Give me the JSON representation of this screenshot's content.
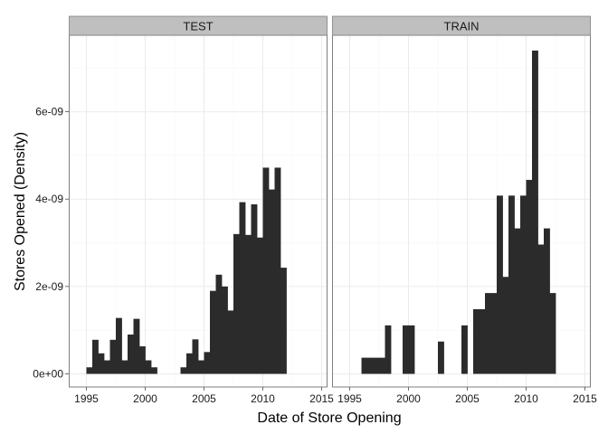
{
  "chart_data": {
    "type": "bar",
    "xlabel": "Date of Store Opening",
    "ylabel": "Stores Opened (Density)",
    "xlim": [
      1993.5,
      2015.5
    ],
    "ylim": [
      -3e-10,
      7.75e-09
    ],
    "x_ticks": [
      1995,
      2000,
      2005,
      2010,
      2015
    ],
    "x_tick_labels": [
      "1995",
      "2000",
      "2005",
      "2010",
      "2015"
    ],
    "y_ticks": [
      0,
      2e-09,
      4e-09,
      6e-09
    ],
    "y_tick_labels": [
      "0e+00",
      "2e-09",
      "4e-09",
      "6e-09"
    ],
    "grid": true,
    "bin_width": 0.5,
    "facets": [
      {
        "label": "TEST",
        "bins": [
          {
            "x": 1995,
            "value": 1.5e-10
          },
          {
            "x": 1995.5,
            "value": 7.8e-10
          },
          {
            "x": 1996,
            "value": 4.7e-10
          },
          {
            "x": 1996.5,
            "value": 3.1e-10
          },
          {
            "x": 1997,
            "value": 7.8e-10
          },
          {
            "x": 1997.5,
            "value": 1.28e-09
          },
          {
            "x": 1998,
            "value": 3.1e-10
          },
          {
            "x": 1998.5,
            "value": 9e-10
          },
          {
            "x": 1999,
            "value": 1.26e-09
          },
          {
            "x": 1999.5,
            "value": 6.3e-10
          },
          {
            "x": 2000,
            "value": 3.1e-10
          },
          {
            "x": 2000.5,
            "value": 1.5e-10
          },
          {
            "x": 2003,
            "value": 1.5e-10
          },
          {
            "x": 2003.5,
            "value": 4.7e-10
          },
          {
            "x": 2004,
            "value": 7.9e-10
          },
          {
            "x": 2004.5,
            "value": 3.1e-10
          },
          {
            "x": 2005,
            "value": 5e-10
          },
          {
            "x": 2005.5,
            "value": 1.9e-09
          },
          {
            "x": 2006,
            "value": 2.27e-09
          },
          {
            "x": 2006.5,
            "value": 2e-09
          },
          {
            "x": 2007,
            "value": 1.45e-09
          },
          {
            "x": 2007.5,
            "value": 3.2e-09
          },
          {
            "x": 2008,
            "value": 3.93e-09
          },
          {
            "x": 2008.5,
            "value": 3.18e-09
          },
          {
            "x": 2009,
            "value": 3.88e-09
          },
          {
            "x": 2009.5,
            "value": 3.12e-09
          },
          {
            "x": 2010,
            "value": 4.72e-09
          },
          {
            "x": 2010.5,
            "value": 4.22e-09
          },
          {
            "x": 2011,
            "value": 4.72e-09
          },
          {
            "x": 2011.5,
            "value": 2.43e-09
          }
        ]
      },
      {
        "label": "TRAIN",
        "bins": [
          {
            "x": 1996,
            "value": 3.7e-10
          },
          {
            "x": 1996.5,
            "value": 3.7e-10
          },
          {
            "x": 1997,
            "value": 3.7e-10
          },
          {
            "x": 1997.5,
            "value": 3.7e-10
          },
          {
            "x": 1998,
            "value": 1.11e-09
          },
          {
            "x": 1999.5,
            "value": 1.11e-09
          },
          {
            "x": 2000,
            "value": 1.11e-09
          },
          {
            "x": 2002.5,
            "value": 7.4e-10
          },
          {
            "x": 2004.5,
            "value": 1.11e-09
          },
          {
            "x": 2005.5,
            "value": 1.48e-09
          },
          {
            "x": 2006,
            "value": 1.48e-09
          },
          {
            "x": 2006.5,
            "value": 1.85e-09
          },
          {
            "x": 2007,
            "value": 1.85e-09
          },
          {
            "x": 2007.5,
            "value": 4.08e-09
          },
          {
            "x": 2008,
            "value": 2.22e-09
          },
          {
            "x": 2008.5,
            "value": 4.08e-09
          },
          {
            "x": 2009,
            "value": 3.33e-09
          },
          {
            "x": 2009.5,
            "value": 4.08e-09
          },
          {
            "x": 2010,
            "value": 4.44e-09
          },
          {
            "x": 2010.5,
            "value": 7.4e-09
          },
          {
            "x": 2011,
            "value": 2.96e-09
          },
          {
            "x": 2011.5,
            "value": 3.33e-09
          },
          {
            "x": 2012,
            "value": 1.85e-09
          }
        ]
      }
    ]
  }
}
